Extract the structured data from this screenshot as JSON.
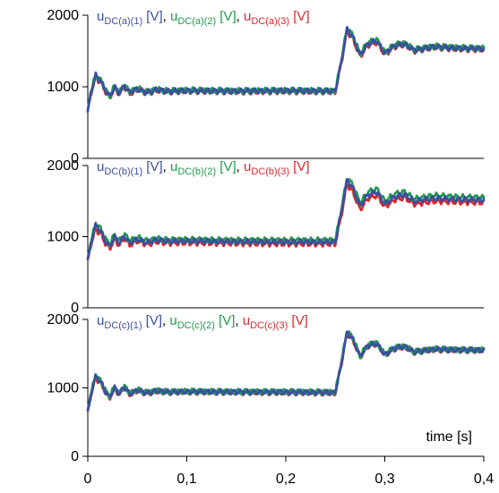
{
  "colors": {
    "axis": "#000000",
    "series_1": "#3a4fa0",
    "series_2": "#1f9a4c",
    "series_3": "#e0262b",
    "background": "#ffffff"
  },
  "chart_data": [
    {
      "type": "line",
      "panel": "a",
      "legend": [
        {
          "main": "u",
          "sub": "DC(a)(1)",
          "unit": " [V]",
          "sep": ", ",
          "color_key": "series_1"
        },
        {
          "main": "u",
          "sub": "DC(a)(2)",
          "unit": " [V]",
          "sep": ", ",
          "color_key": "series_2"
        },
        {
          "main": "u",
          "sub": "DC(a)(3)",
          "unit": " [V]",
          "sep": "",
          "color_key": "series_3"
        }
      ],
      "ylim": [
        0,
        2000
      ],
      "yticks": [
        0,
        1000,
        2000
      ],
      "ytick_labels": [
        "0",
        "1000",
        "2000"
      ],
      "xlim": [
        0,
        0.4
      ],
      "series": [
        {
          "color_key": "series_3",
          "phase": 0.9,
          "x": [
            0,
            0.003,
            0.008,
            0.013,
            0.018,
            0.022,
            0.027,
            0.032,
            0.037,
            0.042,
            0.05,
            0.06,
            0.07,
            0.08,
            0.1,
            0.15,
            0.2,
            0.245,
            0.25,
            0.255,
            0.262,
            0.268,
            0.275,
            0.283,
            0.292,
            0.3,
            0.31,
            0.32,
            0.33,
            0.35,
            0.37,
            0.4
          ],
          "y": [
            640,
            900,
            1130,
            1060,
            930,
            840,
            980,
            900,
            1000,
            900,
            960,
            910,
            950,
            930,
            940,
            930,
            935,
            930,
            930,
            1250,
            1780,
            1660,
            1420,
            1580,
            1620,
            1450,
            1560,
            1590,
            1500,
            1550,
            1530,
            1520
          ]
        },
        {
          "color_key": "series_2",
          "phase": 2.1,
          "x": [
            0,
            0.003,
            0.008,
            0.013,
            0.018,
            0.022,
            0.027,
            0.032,
            0.037,
            0.042,
            0.05,
            0.06,
            0.07,
            0.08,
            0.1,
            0.15,
            0.2,
            0.245,
            0.25,
            0.255,
            0.262,
            0.268,
            0.275,
            0.283,
            0.292,
            0.3,
            0.31,
            0.32,
            0.33,
            0.35,
            0.37,
            0.4
          ],
          "y": [
            660,
            920,
            1170,
            1090,
            960,
            870,
            1010,
            920,
            1030,
            930,
            980,
            930,
            970,
            945,
            955,
            945,
            950,
            945,
            945,
            1290,
            1830,
            1710,
            1460,
            1620,
            1660,
            1480,
            1590,
            1610,
            1520,
            1570,
            1550,
            1540
          ]
        },
        {
          "color_key": "series_1",
          "phase": 0.0,
          "x": [
            0,
            0.003,
            0.008,
            0.013,
            0.018,
            0.022,
            0.027,
            0.032,
            0.037,
            0.042,
            0.05,
            0.06,
            0.07,
            0.08,
            0.1,
            0.15,
            0.2,
            0.245,
            0.25,
            0.255,
            0.262,
            0.268,
            0.275,
            0.283,
            0.292,
            0.3,
            0.31,
            0.32,
            0.33,
            0.35,
            0.37,
            0.4
          ],
          "y": [
            650,
            910,
            1160,
            1080,
            950,
            860,
            1000,
            910,
            1020,
            920,
            970,
            920,
            960,
            935,
            945,
            940,
            945,
            940,
            940,
            1270,
            1810,
            1690,
            1440,
            1600,
            1640,
            1470,
            1570,
            1600,
            1510,
            1560,
            1540,
            1530
          ]
        }
      ]
    },
    {
      "type": "line",
      "panel": "b",
      "legend": [
        {
          "main": "u",
          "sub": "DC(b)(1)",
          "unit": " [V]",
          "sep": ", ",
          "color_key": "series_1"
        },
        {
          "main": "u",
          "sub": "DC(b)(2)",
          "unit": " [V]",
          "sep": ", ",
          "color_key": "series_2"
        },
        {
          "main": "u",
          "sub": "DC(b)(3)",
          "unit": " [V]",
          "sep": "",
          "color_key": "series_3"
        }
      ],
      "ylim": [
        0,
        2000
      ],
      "yticks": [
        0,
        1000,
        2000
      ],
      "ytick_labels": [
        "0",
        "1000",
        "2000"
      ],
      "xlim": [
        0,
        0.4
      ],
      "series": [
        {
          "color_key": "series_3",
          "phase": 1.3,
          "x": [
            0,
            0.003,
            0.008,
            0.013,
            0.018,
            0.022,
            0.027,
            0.032,
            0.037,
            0.042,
            0.05,
            0.06,
            0.07,
            0.08,
            0.1,
            0.15,
            0.2,
            0.245,
            0.25,
            0.255,
            0.262,
            0.268,
            0.275,
            0.283,
            0.292,
            0.3,
            0.31,
            0.32,
            0.33,
            0.35,
            0.37,
            0.4
          ],
          "y": [
            650,
            880,
            1100,
            1040,
            900,
            830,
            960,
            880,
            980,
            880,
            940,
            890,
            930,
            910,
            915,
            905,
            900,
            900,
            900,
            1220,
            1740,
            1620,
            1380,
            1540,
            1580,
            1420,
            1520,
            1550,
            1460,
            1500,
            1490,
            1480
          ]
        },
        {
          "color_key": "series_2",
          "phase": 2.6,
          "x": [
            0,
            0.003,
            0.008,
            0.013,
            0.018,
            0.022,
            0.027,
            0.032,
            0.037,
            0.042,
            0.05,
            0.06,
            0.07,
            0.08,
            0.1,
            0.15,
            0.2,
            0.245,
            0.25,
            0.255,
            0.262,
            0.268,
            0.275,
            0.283,
            0.292,
            0.3,
            0.31,
            0.32,
            0.33,
            0.35,
            0.37,
            0.4
          ],
          "y": [
            680,
            920,
            1190,
            1110,
            970,
            890,
            1030,
            940,
            1040,
            940,
            990,
            940,
            975,
            955,
            960,
            950,
            950,
            950,
            950,
            1300,
            1830,
            1720,
            1470,
            1630,
            1670,
            1500,
            1600,
            1630,
            1530,
            1580,
            1560,
            1550
          ]
        },
        {
          "color_key": "series_1",
          "phase": 0.4,
          "x": [
            0,
            0.003,
            0.008,
            0.013,
            0.018,
            0.022,
            0.027,
            0.032,
            0.037,
            0.042,
            0.05,
            0.06,
            0.07,
            0.08,
            0.1,
            0.15,
            0.2,
            0.245,
            0.25,
            0.255,
            0.262,
            0.268,
            0.275,
            0.283,
            0.292,
            0.3,
            0.31,
            0.32,
            0.33,
            0.35,
            0.37,
            0.4
          ],
          "y": [
            665,
            900,
            1160,
            1080,
            940,
            860,
            1000,
            910,
            1010,
            910,
            965,
            915,
            955,
            935,
            940,
            930,
            925,
            925,
            925,
            1270,
            1800,
            1680,
            1430,
            1590,
            1630,
            1460,
            1560,
            1590,
            1500,
            1540,
            1525,
            1515
          ]
        }
      ]
    },
    {
      "type": "line",
      "panel": "c",
      "legend": [
        {
          "main": "u",
          "sub": "DC(c)(1)",
          "unit": " [V]",
          "sep": ", ",
          "color_key": "series_1"
        },
        {
          "main": "u",
          "sub": "DC(c)(2)",
          "unit": " [V]",
          "sep": ", ",
          "color_key": "series_2"
        },
        {
          "main": "u",
          "sub": "DC(c)(3)",
          "unit": " [V]",
          "sep": "",
          "color_key": "series_3"
        }
      ],
      "annotation": "time [s]",
      "ylim": [
        0,
        2000
      ],
      "yticks": [
        0,
        1000,
        2000
      ],
      "ytick_labels": [
        "0",
        "1000",
        "2000"
      ],
      "xlim": [
        0,
        0.4
      ],
      "xticks": [
        0,
        0.1,
        0.2,
        0.3,
        0.4
      ],
      "xtick_labels": [
        "0",
        "0,1",
        "0,2",
        "0,3",
        "0,4"
      ],
      "series": [
        {
          "color_key": "series_3",
          "phase": 1.7,
          "x": [
            0,
            0.003,
            0.008,
            0.013,
            0.018,
            0.022,
            0.027,
            0.032,
            0.037,
            0.042,
            0.05,
            0.06,
            0.07,
            0.08,
            0.1,
            0.15,
            0.2,
            0.245,
            0.25,
            0.255,
            0.262,
            0.268,
            0.275,
            0.283,
            0.292,
            0.3,
            0.31,
            0.32,
            0.33,
            0.35,
            0.37,
            0.4
          ],
          "y": [
            640,
            880,
            1140,
            1070,
            930,
            850,
            990,
            900,
            1010,
            900,
            960,
            915,
            950,
            935,
            940,
            935,
            930,
            925,
            925,
            1260,
            1800,
            1690,
            1450,
            1610,
            1640,
            1480,
            1570,
            1600,
            1520,
            1560,
            1550,
            1545
          ]
        },
        {
          "color_key": "series_2",
          "phase": 3.0,
          "x": [
            0,
            0.003,
            0.008,
            0.013,
            0.018,
            0.022,
            0.027,
            0.032,
            0.037,
            0.042,
            0.05,
            0.06,
            0.07,
            0.08,
            0.1,
            0.15,
            0.2,
            0.245,
            0.25,
            0.255,
            0.262,
            0.268,
            0.275,
            0.283,
            0.292,
            0.3,
            0.31,
            0.32,
            0.33,
            0.35,
            0.37,
            0.4
          ],
          "y": [
            660,
            910,
            1190,
            1100,
            960,
            870,
            1020,
            920,
            1030,
            920,
            975,
            930,
            965,
            945,
            950,
            945,
            945,
            940,
            940,
            1290,
            1840,
            1720,
            1470,
            1630,
            1660,
            1490,
            1590,
            1610,
            1530,
            1570,
            1560,
            1555
          ]
        },
        {
          "color_key": "series_1",
          "phase": 0.6,
          "x": [
            0,
            0.003,
            0.008,
            0.013,
            0.018,
            0.022,
            0.027,
            0.032,
            0.037,
            0.042,
            0.05,
            0.06,
            0.07,
            0.08,
            0.1,
            0.15,
            0.2,
            0.245,
            0.25,
            0.255,
            0.262,
            0.268,
            0.275,
            0.283,
            0.292,
            0.3,
            0.31,
            0.32,
            0.33,
            0.35,
            0.37,
            0.4
          ],
          "y": [
            650,
            900,
            1170,
            1090,
            945,
            860,
            1005,
            910,
            1020,
            910,
            965,
            925,
            958,
            940,
            945,
            940,
            938,
            932,
            932,
            1275,
            1820,
            1705,
            1460,
            1620,
            1650,
            1485,
            1580,
            1605,
            1525,
            1565,
            1555,
            1550
          ]
        }
      ]
    }
  ]
}
